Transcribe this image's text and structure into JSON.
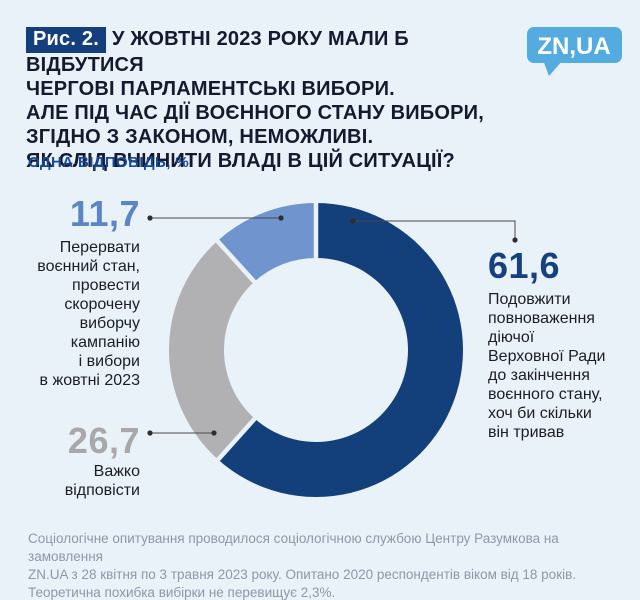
{
  "figure": {
    "badge": "Рис. 2.",
    "title": "У ЖОВТНІ 2023 РОКУ МАЛИ Б ВІДБУТИСЯ\nЧЕРГОВІ ПАРЛАМЕНТСЬКІ ВИБОРИ.\nАЛЕ ПІД ЧАС ДІЇ ВОЄННОГО СТАНУ ВИБОРИ,\nЗГІДНО З ЗАКОНОМ, НЕМОЖЛИВІ.\nЯК СЛІД ВЧИНИТИ ВЛАДІ В ЦІЙ СИТУАЦІЇ?",
    "subtitle": "ОДНА ВІДПОВІДЬ, %"
  },
  "logo": {
    "text": "ZN,UA",
    "bg_color": "#54abdf",
    "text_color": "#ffffff"
  },
  "chart_data": {
    "type": "pie",
    "donut": true,
    "start_angle_deg": 0,
    "direction": "clockwise",
    "title": "У жовтні 2023 року мали б відбутися чергові парламентські вибори. Але під час дії воєнного стану вибори, згідно з законом, неможливі. Як слід вчинити владі в цій ситуації?",
    "subtitle": "ОДНА ВІДПОВІДЬ, %",
    "value_unit": "%",
    "segments": [
      {
        "label": "Подовжити повноваження діючої Верховної Ради до закінчення воєнного стану, хоч би скільки він тривав",
        "value": 61.6,
        "display_value": "61,6",
        "color": "#133f7b"
      },
      {
        "label": "Важко відповісти",
        "value": 26.7,
        "display_value": "26,7",
        "color": "#b1b1b3"
      },
      {
        "label": "Перервати воєнний стан, провести скорочену виборчу кампанію і вибори в жовтні 2023",
        "value": 11.7,
        "display_value": "11,7",
        "color": "#7094ce"
      }
    ]
  },
  "annotations": {
    "left_top": {
      "value": "11,7",
      "label": "Перервати\nвоєнний стан,\nпровести\nскорочену\nвиборчу\nкампанію\nі вибори\nв жовтні 2023"
    },
    "left_bottom": {
      "value": "26,7",
      "label": "Важко\nвідповісти"
    },
    "right": {
      "value": "61,6",
      "label": "Подовжити\nповноваження\nдіючої\nВерховної Ради\nдо закінчення\nвоєнного стану,\nхоч би скільки\nвін тривав"
    }
  },
  "footer": {
    "text": "Соціологічне опитування проводилося соціологічною  службою Центру Разумкова на замовлення\nZN.UA з 28 квітня по 3 травня 2023 року. Опитано 2020 респондентів віком від 18 років.\nТеоретична похибка вибірки не перевищує 2,3%."
  }
}
